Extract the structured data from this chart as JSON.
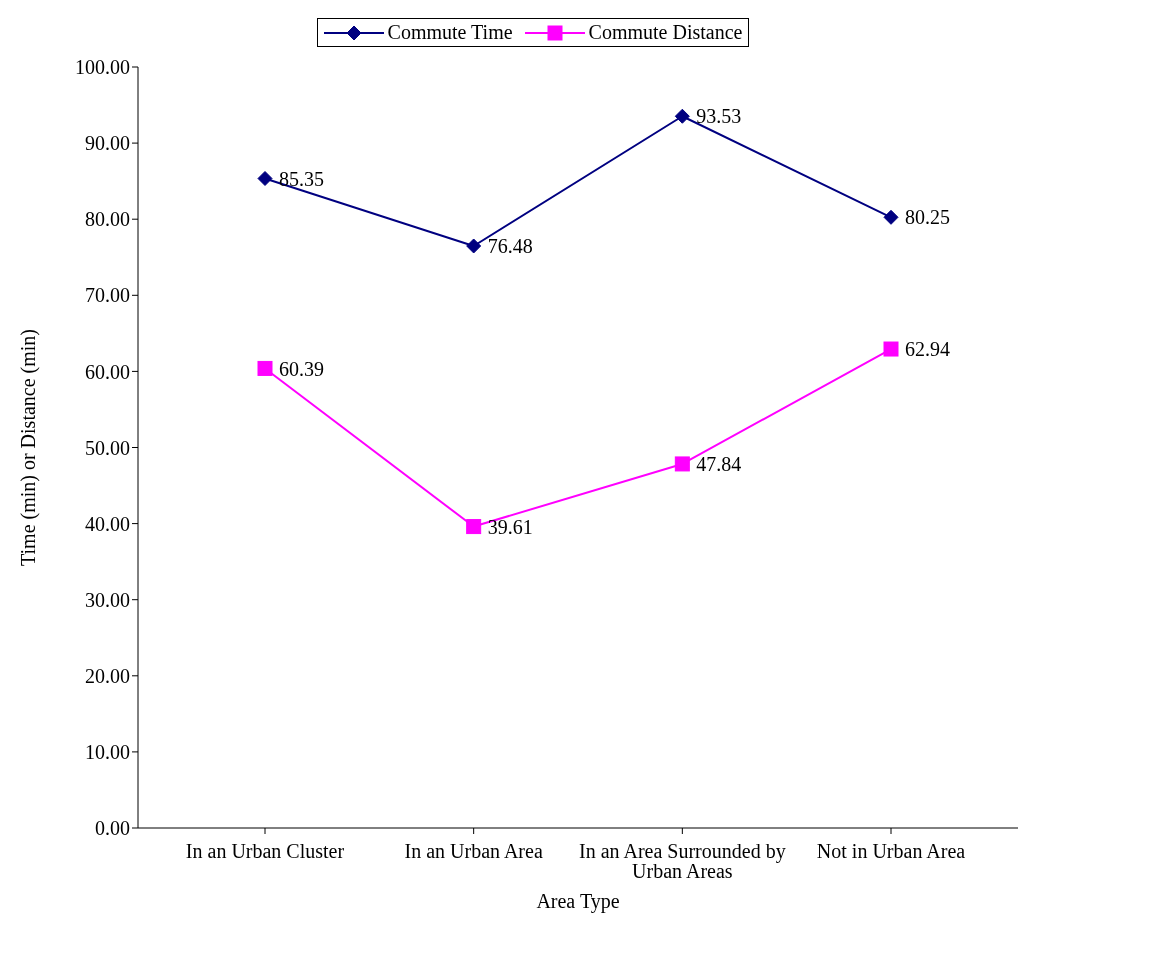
{
  "chart_data": {
    "type": "line",
    "xlabel": "Area Type",
    "ylabel": "Time (min) or Distance (min)",
    "categories": [
      "In an Urban Cluster",
      "In an Urban Area",
      "In an Area Surrounded by Urban Areas",
      "Not in Urban Area"
    ],
    "series": [
      {
        "name": "Commute Time",
        "color": "#000080",
        "marker": "diamond",
        "values": [
          85.35,
          76.48,
          93.53,
          80.25
        ]
      },
      {
        "name": "Commute Distance",
        "color": "#ff00ff",
        "marker": "square",
        "values": [
          60.39,
          39.61,
          47.84,
          62.94
        ]
      }
    ],
    "ylim": [
      0,
      100
    ],
    "yticks": [
      {
        "value": 0,
        "label": "0.00"
      },
      {
        "value": 10,
        "label": "10.00"
      },
      {
        "value": 20,
        "label": "20.00"
      },
      {
        "value": 30,
        "label": "30.00"
      },
      {
        "value": 40,
        "label": "40.00"
      },
      {
        "value": 50,
        "label": "50.00"
      },
      {
        "value": 60,
        "label": "60.00"
      },
      {
        "value": 70,
        "label": "70.00"
      },
      {
        "value": 80,
        "label": "80.00"
      },
      {
        "value": 90,
        "label": "90.00"
      },
      {
        "value": 100,
        "label": "100.00"
      }
    ],
    "data_labels": true,
    "legend": "top",
    "grid": false,
    "line_style": "solid"
  }
}
